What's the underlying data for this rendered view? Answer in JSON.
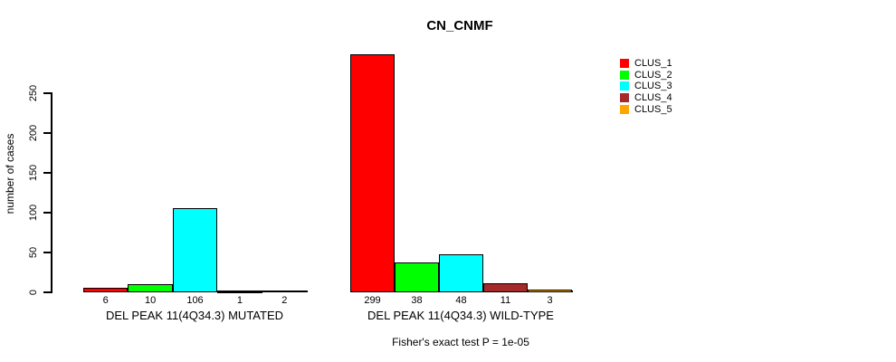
{
  "chart_data": {
    "type": "bar",
    "title": "CN_CNMF",
    "ylabel": "number of cases",
    "ylim": [
      0,
      250
    ],
    "yticks": [
      0,
      50,
      100,
      150,
      200,
      250
    ],
    "grid": false,
    "legend_position": "right",
    "clusters": [
      {
        "name": "CLUS_1",
        "color": "#FF0000"
      },
      {
        "name": "CLUS_2",
        "color": "#00FF00"
      },
      {
        "name": "CLUS_3",
        "color": "#00FFFF"
      },
      {
        "name": "CLUS_4",
        "color": "#A52A2A"
      },
      {
        "name": "CLUS_5",
        "color": "#FFA500"
      }
    ],
    "groups": [
      {
        "xlabel": "DEL PEAK 11(4Q34.3) MUTATED",
        "values": [
          6,
          10,
          106,
          1,
          2
        ]
      },
      {
        "xlabel": "DEL PEAK 11(4Q34.3) WILD-TYPE",
        "values": [
          299,
          38,
          48,
          11,
          3
        ]
      }
    ],
    "annotation": "Fisher's exact test P = 1e-05"
  }
}
